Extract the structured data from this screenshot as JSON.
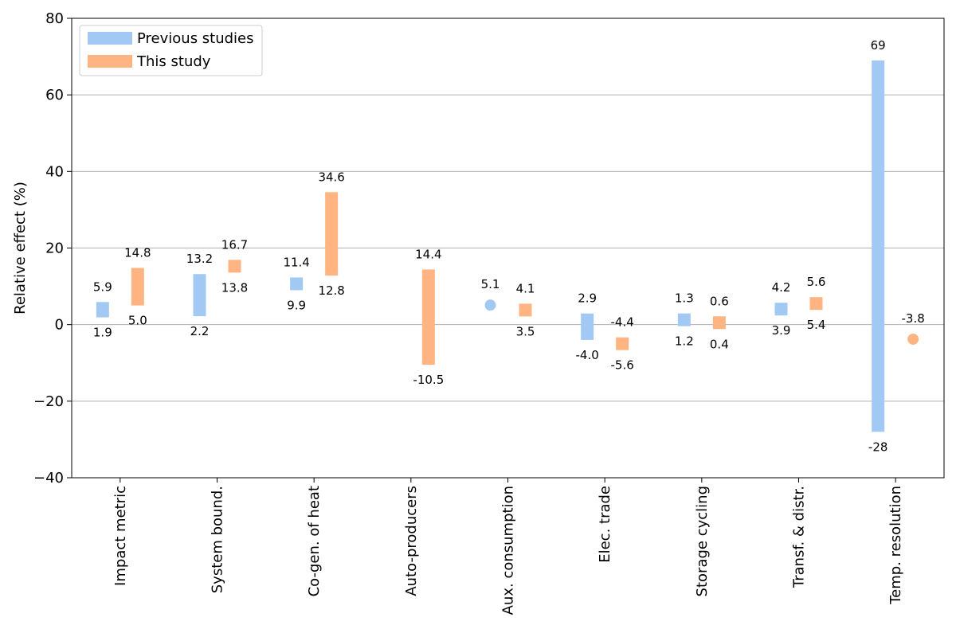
{
  "chart_data": {
    "type": "bar",
    "subtype": "floating-range",
    "title": "",
    "xlabel": "",
    "ylabel": "Relative effect (%)",
    "ylim": [
      -40,
      80
    ],
    "yticks": [
      -40,
      -20,
      0,
      20,
      40,
      60,
      80
    ],
    "ytick_labels": [
      "−40",
      "−20",
      "0",
      "20",
      "40",
      "60",
      "80"
    ],
    "grid": "horizontal",
    "legend_position": "top-left",
    "categories": [
      "Impact metric",
      "System bound.",
      "Co-gen. of heat",
      "Auto-producers",
      "Aux. consumption",
      "Elec. trade",
      "Storage cycling",
      "Transf. & distr.",
      "Temp. resolution"
    ],
    "series": [
      {
        "name": "Previous studies",
        "color": "#a1c9f4",
        "ranges": [
          [
            1.9,
            5.9
          ],
          [
            2.2,
            13.2
          ],
          [
            9.9,
            11.4
          ],
          null,
          [
            5.1,
            5.1
          ],
          [
            -4.0,
            2.9
          ],
          [
            1.2,
            1.3
          ],
          [
            3.9,
            4.2
          ],
          [
            -28,
            69
          ]
        ],
        "top_labels": [
          "5.9",
          "13.2",
          "11.4",
          null,
          "5.1",
          "2.9",
          "1.3",
          "4.2",
          "69"
        ],
        "bottom_labels": [
          "1.9",
          "2.2",
          "9.9",
          null,
          null,
          "-4.0",
          "1.2",
          "3.9",
          "-28"
        ]
      },
      {
        "name": "This study",
        "color": "#ffb482",
        "ranges": [
          [
            5.0,
            14.8
          ],
          [
            13.8,
            16.7
          ],
          [
            12.8,
            34.6
          ],
          [
            -10.5,
            14.4
          ],
          [
            3.5,
            4.1
          ],
          [
            -5.6,
            -4.4
          ],
          [
            0.4,
            0.6
          ],
          [
            5.4,
            5.6
          ],
          [
            -3.8,
            -3.8
          ]
        ],
        "top_labels": [
          "14.8",
          "16.7",
          "34.6",
          "14.4",
          "4.1",
          "-4.4",
          "0.6",
          "5.6",
          "-3.8"
        ],
        "bottom_labels": [
          "5.0",
          "13.8",
          "12.8",
          "-10.5",
          "3.5",
          "-5.6",
          "0.4",
          "5.4",
          null
        ]
      }
    ]
  }
}
